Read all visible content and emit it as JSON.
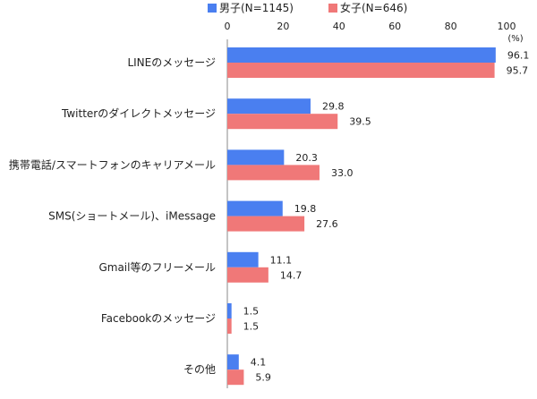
{
  "chart_data": {
    "type": "bar",
    "orientation": "horizontal",
    "title": "",
    "xlabel": "",
    "ylabel": "",
    "unit_label": "(%)",
    "xlim": [
      0,
      100
    ],
    "x_ticks": [
      0,
      20,
      40,
      60,
      80,
      100
    ],
    "grid": false,
    "legend_position": "top",
    "categories": [
      "LINEのメッセージ",
      "Twitterのダイレクトメッセージ",
      "携帯電話/スマートフォンのキャリアメール",
      "SMS(ショートメール)、iMessage",
      "Gmail等のフリーメール",
      "Facebookのメッセージ",
      "その他"
    ],
    "series": [
      {
        "name": "男子(N=1145)",
        "color": "#4a7ff0",
        "values": [
          96.1,
          29.8,
          20.3,
          19.8,
          11.1,
          1.5,
          4.1
        ],
        "labels": [
          "96.1",
          "29.8",
          "20.3",
          "19.8",
          "11.1",
          "1.5",
          "4.1"
        ]
      },
      {
        "name": "女子(N=646)",
        "color": "#f07878",
        "values": [
          95.7,
          39.5,
          33.0,
          27.6,
          14.7,
          1.5,
          5.9
        ],
        "labels": [
          "95.7",
          "39.5",
          "33.0",
          "27.6",
          "14.7",
          "1.5",
          "5.9"
        ]
      }
    ]
  }
}
